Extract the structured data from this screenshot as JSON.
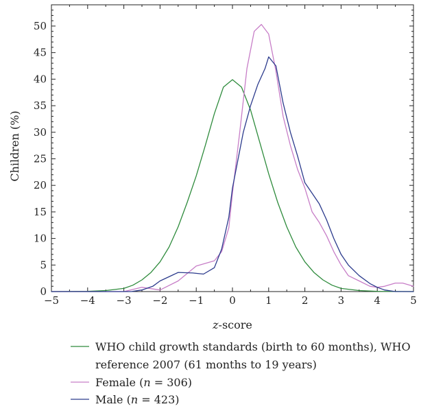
{
  "chart_data": {
    "type": "line",
    "title": "",
    "xlabel_italic": "z",
    "xlabel_rest": "-score",
    "ylabel": "Children (%)",
    "xlim": [
      -5,
      5
    ],
    "ylim": [
      0,
      54
    ],
    "x_ticks": [
      -5,
      -4,
      -3,
      -2,
      -1,
      0,
      1,
      2,
      3,
      4,
      5
    ],
    "x_tick_labels": [
      "−5",
      "−4",
      "−3",
      "−2",
      "−1",
      "0",
      "1",
      "2",
      "3",
      "4",
      "5"
    ],
    "y_ticks": [
      0,
      5,
      10,
      15,
      20,
      25,
      30,
      35,
      40,
      45,
      50
    ],
    "y_tick_labels": [
      "0",
      "5",
      "10",
      "15",
      "20",
      "25",
      "30",
      "35",
      "40",
      "45",
      "50"
    ],
    "grid": false,
    "legend_position": "bottom",
    "series": [
      {
        "name": "WHO child growth standards (birth to 60 months), WHO reference 2007 (61 months to 19 years)",
        "legend_lines": [
          "WHO child growth standards (birth to 60 months), WHO",
          "reference 2007 (61 months to 19 years)"
        ],
        "color": "#2e8b3c",
        "x": [
          -5,
          -4,
          -3.5,
          -3,
          -2.75,
          -2.5,
          -2.25,
          -2,
          -1.75,
          -1.5,
          -1.25,
          -1,
          -0.75,
          -0.5,
          -0.25,
          0,
          0.25,
          0.5,
          0.75,
          1,
          1.25,
          1.5,
          1.75,
          2,
          2.25,
          2.5,
          2.75,
          3,
          3.5,
          4,
          5
        ],
        "y": [
          0,
          0.05,
          0.2,
          0.6,
          1.2,
          2.2,
          3.6,
          5.6,
          8.4,
          12.2,
          16.8,
          21.8,
          27.5,
          33.5,
          38.5,
          39.9,
          38.5,
          34.2,
          28.2,
          22.2,
          16.8,
          12.2,
          8.4,
          5.6,
          3.6,
          2.2,
          1.2,
          0.6,
          0.2,
          0.05,
          0
        ]
      },
      {
        "name": "Female (n = 306)",
        "legend_prefix": "Female (",
        "legend_italic": "n",
        "legend_suffix": " = 306)",
        "color": "#c77dc7",
        "x": [
          -5,
          -3,
          -2.5,
          -2,
          -1.5,
          -1,
          -0.5,
          -0.3,
          -0.1,
          0,
          0.2,
          0.4,
          0.6,
          0.8,
          1.0,
          1.2,
          1.4,
          1.6,
          1.8,
          2.0,
          2.2,
          2.4,
          2.6,
          2.8,
          3.0,
          3.2,
          3.5,
          3.8,
          4.0,
          4.2,
          4.5,
          4.7,
          5.0
        ],
        "y": [
          0,
          0,
          0.8,
          0.3,
          2.0,
          4.8,
          5.8,
          7.5,
          12.0,
          18.5,
          30.0,
          42.0,
          49.0,
          50.3,
          48.5,
          41.5,
          33.0,
          27.5,
          23.0,
          19.5,
          15.0,
          13.0,
          10.5,
          7.5,
          5.0,
          3.0,
          2.0,
          1.0,
          0.8,
          1.0,
          1.6,
          1.6,
          1.0
        ]
      },
      {
        "name": "Male (n = 423)",
        "legend_prefix": "Male (",
        "legend_italic": "n",
        "legend_suffix": " = 423)",
        "color": "#2b3a8c",
        "x": [
          -5,
          -2.8,
          -2.5,
          -2.2,
          -2,
          -1.5,
          -1.1,
          -0.8,
          -0.5,
          -0.3,
          -0.1,
          0,
          0.3,
          0.5,
          0.7,
          0.9,
          1.0,
          1.2,
          1.4,
          1.6,
          1.8,
          2.0,
          2.2,
          2.4,
          2.6,
          2.8,
          3.0,
          3.2,
          3.5,
          3.8,
          4.0,
          4.2,
          4.5,
          5.0
        ],
        "y": [
          0,
          0,
          0.3,
          1.0,
          2.0,
          3.6,
          3.5,
          3.3,
          4.5,
          8.0,
          14.0,
          19.5,
          30.0,
          35.0,
          39.0,
          42.0,
          44.2,
          42.5,
          35.5,
          30.0,
          25.5,
          20.5,
          18.5,
          16.5,
          13.5,
          10.0,
          7.0,
          5.0,
          3.0,
          1.5,
          0.8,
          0.3,
          0,
          0
        ]
      }
    ]
  }
}
